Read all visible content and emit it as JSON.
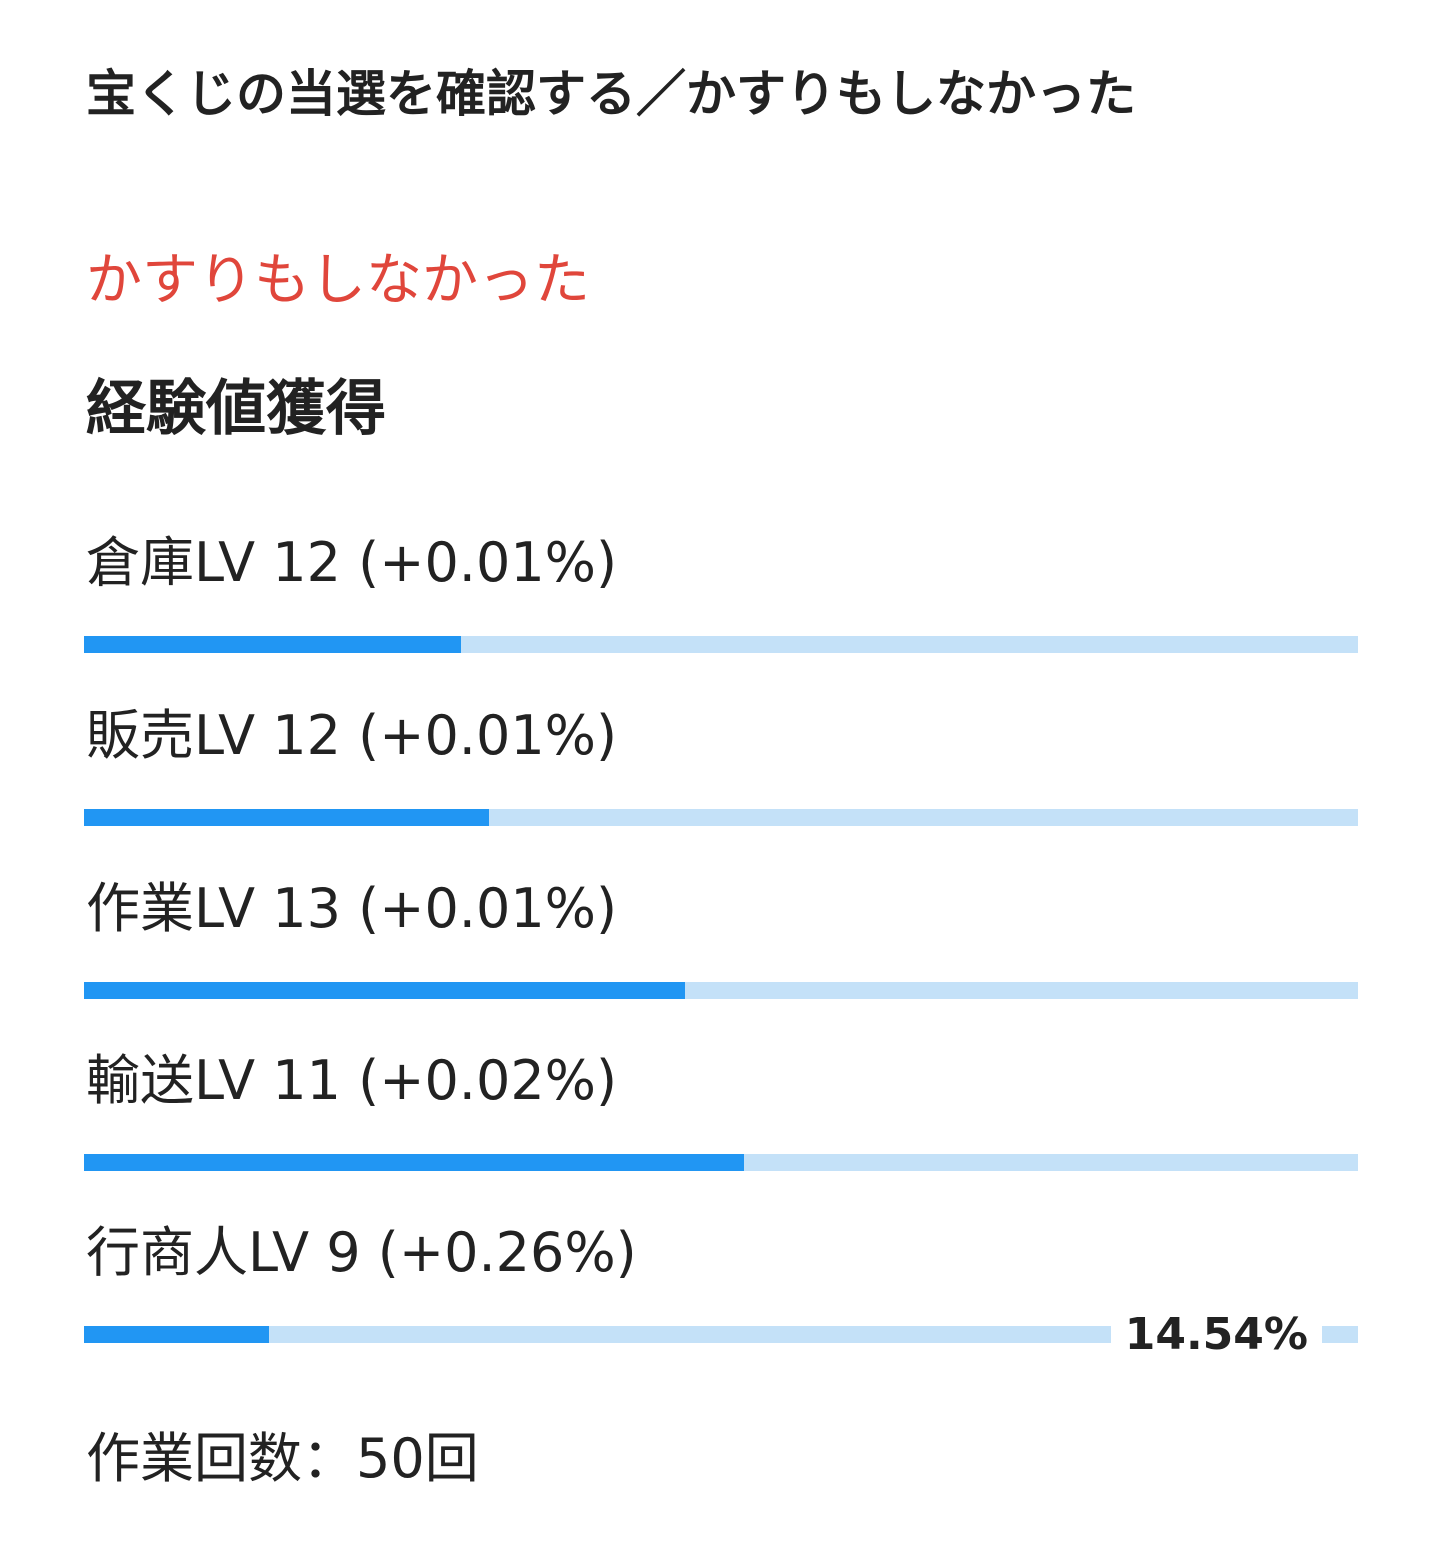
{
  "page": {
    "title": "宝くじの当選を確認する／かすりもしなかった",
    "result": "かすりもしなかった",
    "result_color": "#e0463b"
  },
  "experience": {
    "heading": "経験値獲得",
    "fill_color": "#2196f3",
    "track_color": "#c4e1f8",
    "skills": [
      {
        "label": "倉庫LV 12 (+0.01%)",
        "progress": 0.296
      },
      {
        "label": "販売LV 12 (+0.01%)",
        "progress": 0.318
      },
      {
        "label": "作業LV 13 (+0.01%)",
        "progress": 0.472
      },
      {
        "label": "輸送LV 11 (+0.02%)",
        "progress": 0.518
      },
      {
        "label": "行商人LV 9 (+0.26%)",
        "progress": 0.1454,
        "percent_text": "14.54%"
      }
    ]
  },
  "summary": {
    "work_count": "作業回数：50回"
  }
}
